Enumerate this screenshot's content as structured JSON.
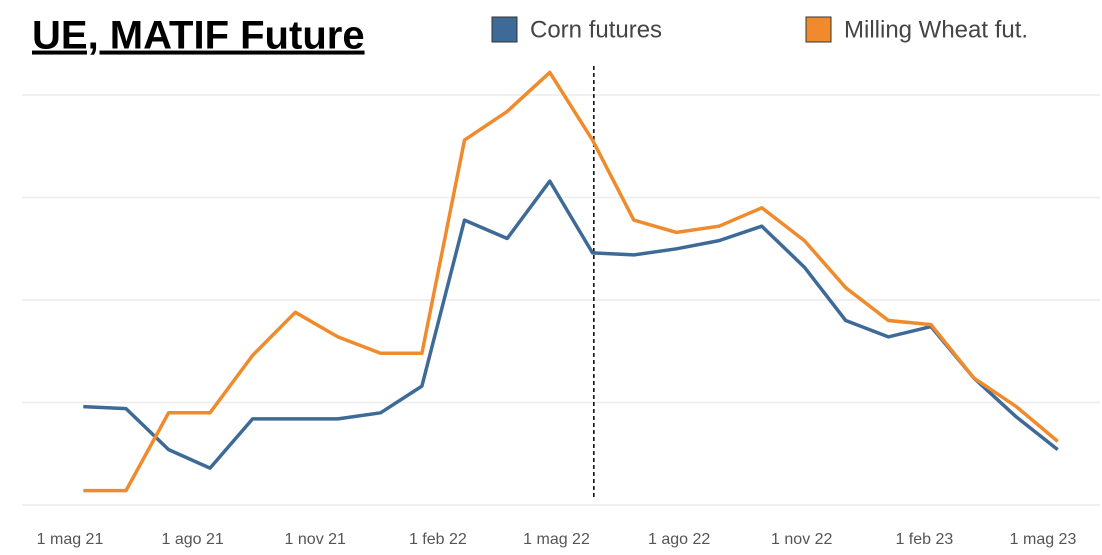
{
  "chart_data": {
    "type": "line",
    "title": "UE, MATIF Future",
    "x": [
      "2021-05-11",
      "2021-06-12",
      "2021-07-14",
      "2021-08-14",
      "2021-09-15",
      "2021-10-17",
      "2021-11-18",
      "2021-12-20",
      "2022-01-20",
      "2022-02-21",
      "2022-03-25",
      "2022-04-26",
      "2022-05-28",
      "2022-06-28",
      "2022-07-30",
      "2022-08-31",
      "2022-10-02",
      "2022-11-03",
      "2022-12-04",
      "2023-01-05",
      "2023-02-06",
      "2023-03-10",
      "2023-04-11",
      "2023-05-12"
    ],
    "series": [
      {
        "name": "Corn futures",
        "color": "#3e6a98",
        "values": [
          198,
          197,
          177,
          168,
          192,
          192,
          192,
          195,
          208,
          289,
          280,
          308,
          273,
          272,
          275,
          279,
          286,
          266,
          240,
          232,
          237,
          212,
          193,
          177
        ]
      },
      {
        "name": "Milling Wheat fut.",
        "color": "#ef8b2c",
        "values": [
          157,
          157,
          195,
          195,
          223,
          244,
          232,
          224,
          224,
          328,
          342,
          361,
          328,
          289,
          283,
          286,
          295,
          279,
          256,
          240,
          238,
          212,
          198,
          181
        ]
      }
    ],
    "ylim": [
      140,
      370
    ],
    "yticks": [
      150,
      200,
      250,
      300,
      350
    ],
    "grid": true,
    "xticks": [
      {
        "value": "2021-05-01",
        "label": "1 mag 21"
      },
      {
        "value": "2021-08-01",
        "label": "1 ago 21"
      },
      {
        "value": "2021-11-01",
        "label": "1 nov 21"
      },
      {
        "value": "2022-02-01",
        "label": "1 feb 22"
      },
      {
        "value": "2022-05-01",
        "label": "1 mag 22"
      },
      {
        "value": "2022-08-01",
        "label": "1 ago 22"
      },
      {
        "value": "2022-11-01",
        "label": "1 nov 22"
      },
      {
        "value": "2023-02-01",
        "label": "1 feb 23"
      },
      {
        "value": "2023-05-01",
        "label": "1 mag 23"
      }
    ],
    "vline": "2022-05-29"
  }
}
